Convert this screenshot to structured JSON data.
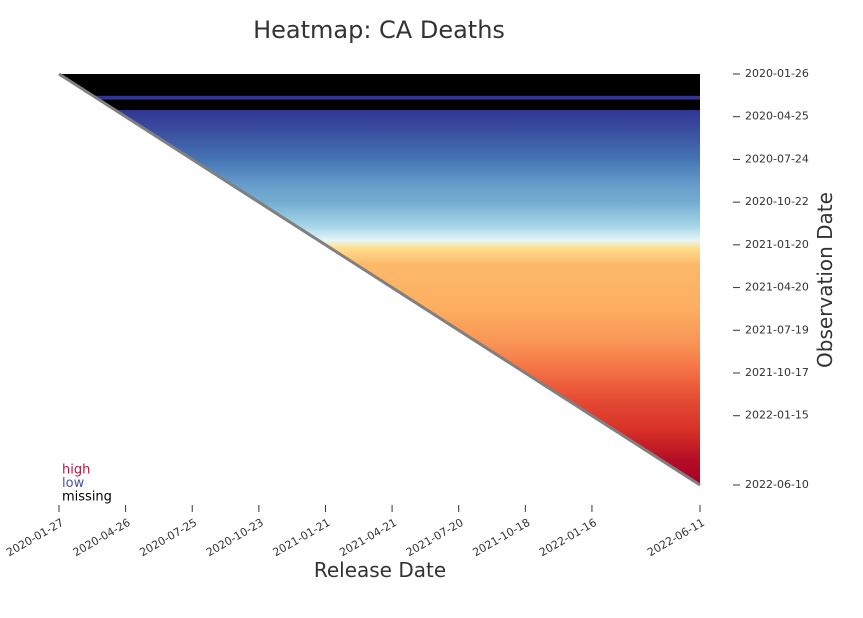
{
  "chart_data": {
    "type": "heatmap",
    "title": "Heatmap: CA Deaths",
    "xlabel": "Release Date",
    "ylabel": "Observation Date",
    "xlim": [
      "2020-01-27",
      "2022-06-11"
    ],
    "xticks": [
      "2020-01-27",
      "2020-04-26",
      "2020-07-25",
      "2020-10-23",
      "2021-01-21",
      "2021-04-21",
      "2021-07-20",
      "2021-10-18",
      "2022-01-16",
      "2022-06-11"
    ],
    "ylim": [
      "2020-01-26",
      "2022-06-10"
    ],
    "yticks": [
      "2020-01-26",
      "2020-04-25",
      "2020-07-24",
      "2020-10-22",
      "2021-01-20",
      "2021-04-20",
      "2021-07-19",
      "2021-10-17",
      "2022-01-15",
      "2022-06-10"
    ],
    "y": [
      "2020-01-26",
      "2020-03-12",
      "2020-03-20",
      "2020-04-11",
      "2020-05-25",
      "2020-07-24",
      "2020-09-20",
      "2020-10-22",
      "2020-12-15",
      "2021-01-10",
      "2021-01-25",
      "2021-03-01",
      "2021-06-01",
      "2021-08-15",
      "2021-10-17",
      "2021-12-15",
      "2022-02-15",
      "2022-04-15",
      "2022-06-10"
    ],
    "colors": [
      "#000000",
      "#313695",
      "#000000",
      "#313695",
      "#3a4fa0",
      "#4575b4",
      "#6aa0cc",
      "#74add1",
      "#abd9e9",
      "#e8f6f8",
      "#fee090",
      "#fdb96a",
      "#fdae61",
      "#f99455",
      "#f46d43",
      "#e34a33",
      "#d73027",
      "#b50f26",
      "#a50026"
    ],
    "missing_color": "#000000",
    "diagonal_color": "#808080",
    "legend": [
      {
        "label": "high",
        "color": "#c0143c"
      },
      {
        "label": "low",
        "color": "#4a4fa8"
      },
      {
        "label": "missing",
        "color": "#000000"
      }
    ]
  }
}
